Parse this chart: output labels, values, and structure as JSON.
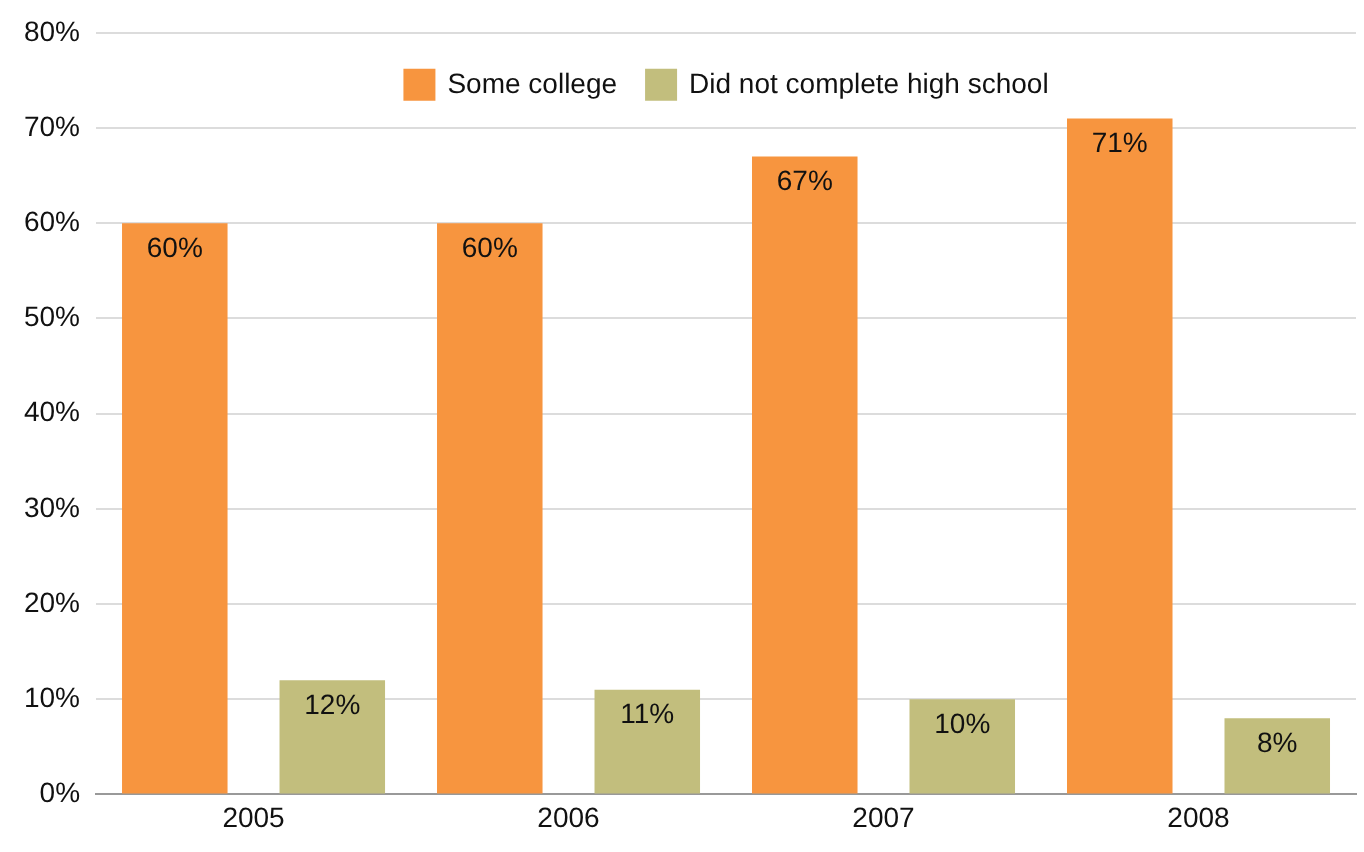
{
  "chart_data": {
    "type": "bar",
    "categories": [
      "2005",
      "2006",
      "2007",
      "2008"
    ],
    "series": [
      {
        "name": "Some college",
        "color": "#f7953f",
        "values": [
          60,
          60,
          67,
          71
        ],
        "value_labels": [
          "60%",
          "60%",
          "67%",
          "71%"
        ]
      },
      {
        "name": "Did not complete high school",
        "color": "#c2be7d",
        "values": [
          12,
          11,
          10,
          8
        ],
        "value_labels": [
          "12%",
          "11%",
          "10%",
          "8%"
        ]
      }
    ],
    "ylim": [
      0,
      80
    ],
    "yticks": [
      {
        "value": 0,
        "label": "0%"
      },
      {
        "value": 10,
        "label": "10%"
      },
      {
        "value": 20,
        "label": "20%"
      },
      {
        "value": 30,
        "label": "30%"
      },
      {
        "value": 40,
        "label": "40%"
      },
      {
        "value": 50,
        "label": "50%"
      },
      {
        "value": 60,
        "label": "60%"
      },
      {
        "value": 70,
        "label": "70%"
      },
      {
        "value": 80,
        "label": "80%"
      }
    ],
    "grid": "y",
    "legend": "top"
  }
}
